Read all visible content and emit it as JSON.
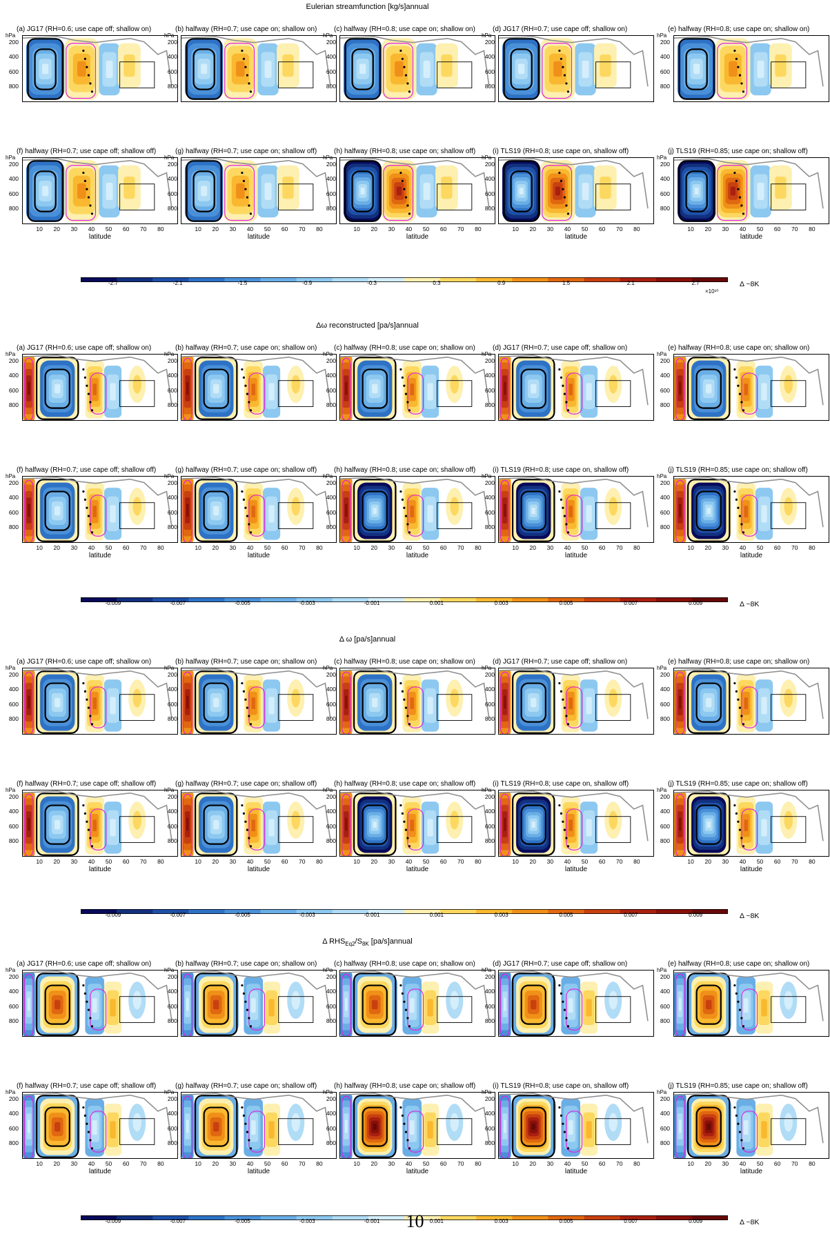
{
  "sections": [
    {
      "title": "Eulerian streamfunction [kg/s]annual",
      "colorbar_ticks": [
        "-2.7",
        "-2.1",
        "-1.5",
        "-0.9",
        "-0.3",
        "0.3",
        "0.9",
        "1.5",
        "2.1",
        "2.7"
      ],
      "colorbar_exponent": "×10¹⁰",
      "delta_label": "Δ ~8K"
    },
    {
      "title": "Δω  reconstructed  [pa/s]annual",
      "colorbar_ticks": [
        "-0.009",
        "-0.007",
        "-0.005",
        "-0.003",
        "-0.001",
        "0.001",
        "0.003",
        "0.005",
        "0.007",
        "0.009"
      ],
      "colorbar_exponent": "",
      "delta_label": "Δ ~8K"
    },
    {
      "title": "Δ ω [pa/s]annual",
      "colorbar_ticks": [
        "-0.009",
        "-0.007",
        "-0.005",
        "-0.003",
        "-0.001",
        "0.001",
        "0.003",
        "0.005",
        "0.007",
        "0.009"
      ],
      "colorbar_exponent": "",
      "delta_label": "Δ ~8K"
    },
    {
      "title": "Δ RHS_Eq2/S_8K [pa/s]annual",
      "colorbar_ticks": [
        "-0.009",
        "-0.007",
        "-0.005",
        "-0.003",
        "-0.001",
        "0.001",
        "0.003",
        "0.005",
        "0.007",
        "0.009"
      ],
      "colorbar_exponent": "",
      "delta_label": "Δ ~8K"
    }
  ],
  "panel_titles": [
    "(a) JG17 (RH=0.6; use cape off; shallow on)",
    "(b) halfway (RH=0.7; use cape on; shallow on)",
    "(c) halfway (RH=0.8; use cape on; shallow on)",
    "(d) JG17 (RH=0.7; use cape  off; shallow on)",
    "(e) halfway (RH=0.8; use cape on; shallow on)",
    "(f) halfway (RH=0.7; use cape off; shallow off)",
    "(g) halfway (RH=0.7; use cape on; shallow off)",
    "(h) halfway (RH=0.8; use cape on; shallow off)",
    "(i) TLS19 (RH=0.8; use cape on, shallow off)",
    "(j) TLS19 (RH=0.85;  use cape on; shallow off)"
  ],
  "axis": {
    "y_unit": "hPa",
    "y_ticks": [
      "200",
      "400",
      "600",
      "800"
    ],
    "x_ticks": [
      "10",
      "20",
      "30",
      "40",
      "50",
      "60",
      "70",
      "80"
    ],
    "x_title": "latitude"
  },
  "page_number": "10",
  "colors": {
    "negative_scale": [
      "#080a5a",
      "#12307e",
      "#1e50a8",
      "#2e72c6",
      "#4a90d8",
      "#6aaee6",
      "#8cc8f0",
      "#b0dcf6",
      "#d4eefb"
    ],
    "positive_scale": [
      "#fdf0b0",
      "#fdd860",
      "#f9b830",
      "#f09018",
      "#e06810",
      "#c84010",
      "#a82010",
      "#881008",
      "#680808"
    ],
    "contour_black": "#000000",
    "contour_magenta": "#e020e0",
    "contour_gray": "#909090",
    "contour_navy": "#1a1a9a"
  },
  "chart_data": [
    {
      "type": "heatmap",
      "title": "Eulerian streamfunction [kg/s]annual",
      "xlabel": "latitude",
      "ylabel": "hPa",
      "xlim": [
        0,
        90
      ],
      "ylim": [
        1000,
        100
      ],
      "panels": 10,
      "colorbar": {
        "min": -30000000000.0,
        "max": 30000000000.0,
        "ticks": [
          -27000000000.0,
          -21000000000.0,
          -15000000000.0,
          -9000000000.0,
          -3000000000.0,
          3000000000.0,
          9000000000.0,
          15000000000.0,
          21000000000.0,
          27000000000.0
        ]
      },
      "features": {
        "negative_cell_lat": [
          3,
          25
        ],
        "positive_cell_lat": [
          25,
          45
        ],
        "box_lat": [
          56,
          76
        ],
        "box_p": [
          450,
          800
        ]
      }
    },
    {
      "type": "heatmap",
      "title": "Δω  reconstructed  [pa/s]annual",
      "xlabel": "latitude",
      "ylabel": "hPa",
      "xlim": [
        0,
        90
      ],
      "ylim": [
        1000,
        100
      ],
      "panels": 10,
      "colorbar": {
        "min": -0.01,
        "max": 0.01,
        "ticks": [
          -0.009,
          -0.007,
          -0.005,
          -0.003,
          -0.001,
          0.001,
          0.003,
          0.005,
          0.007,
          0.009
        ]
      }
    },
    {
      "type": "heatmap",
      "title": "Δ ω [pa/s]annual",
      "xlabel": "latitude",
      "ylabel": "hPa",
      "xlim": [
        0,
        90
      ],
      "ylim": [
        1000,
        100
      ],
      "panels": 10,
      "colorbar": {
        "min": -0.01,
        "max": 0.01,
        "ticks": [
          -0.009,
          -0.007,
          -0.005,
          -0.003,
          -0.001,
          0.001,
          0.003,
          0.005,
          0.007,
          0.009
        ]
      }
    },
    {
      "type": "heatmap",
      "title": "Δ RHS_Eq2/S_8K [pa/s]annual",
      "xlabel": "latitude",
      "ylabel": "hPa",
      "xlim": [
        0,
        90
      ],
      "ylim": [
        1000,
        100
      ],
      "panels": 10,
      "colorbar": {
        "min": -0.01,
        "max": 0.01,
        "ticks": [
          -0.009,
          -0.007,
          -0.005,
          -0.003,
          -0.001,
          0.001,
          0.003,
          0.005,
          0.007,
          0.009
        ]
      }
    }
  ]
}
